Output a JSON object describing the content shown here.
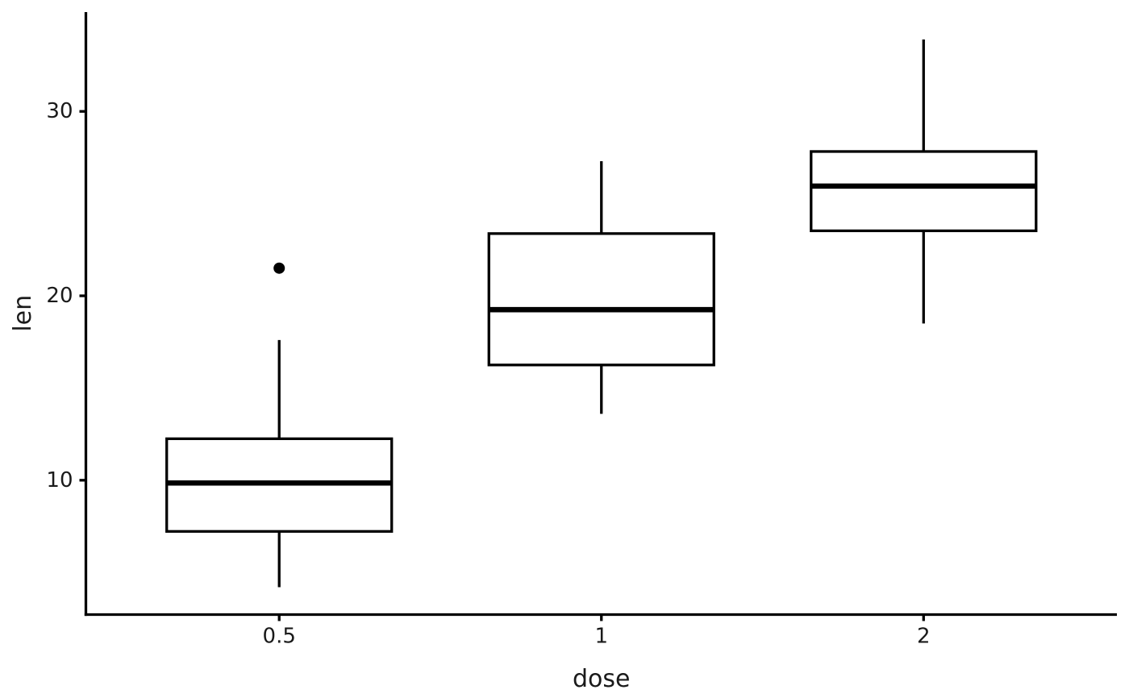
{
  "chart_data": {
    "type": "boxplot",
    "title": "",
    "xlabel": "dose",
    "ylabel": "len",
    "categories": [
      "0.5",
      "1",
      "2"
    ],
    "yticks": [
      10,
      20,
      30
    ],
    "ylim": [
      2.715,
      35.385
    ],
    "grid": false,
    "legend": "none",
    "series": [
      {
        "category": "0.5",
        "whisker_low": 4.2,
        "q1": 7.225,
        "median": 9.85,
        "q3": 12.25,
        "whisker_high": 17.6,
        "outliers": [
          21.5
        ]
      },
      {
        "category": "1",
        "whisker_low": 13.6,
        "q1": 16.25,
        "median": 19.25,
        "q3": 23.375,
        "whisker_high": 27.3,
        "outliers": []
      },
      {
        "category": "2",
        "whisker_low": 18.5,
        "q1": 23.525,
        "median": 25.95,
        "q3": 27.825,
        "whisker_high": 33.9,
        "outliers": []
      }
    ],
    "colors": {
      "box_stroke": "#000000",
      "box_fill": "#ffffff",
      "median": "#000000",
      "whisker": "#000000",
      "outlier": "#000000",
      "axis_line": "#000000",
      "tick_text": "#1a1a1a",
      "title_text": "#1a1a1a",
      "background": "#ffffff"
    }
  }
}
